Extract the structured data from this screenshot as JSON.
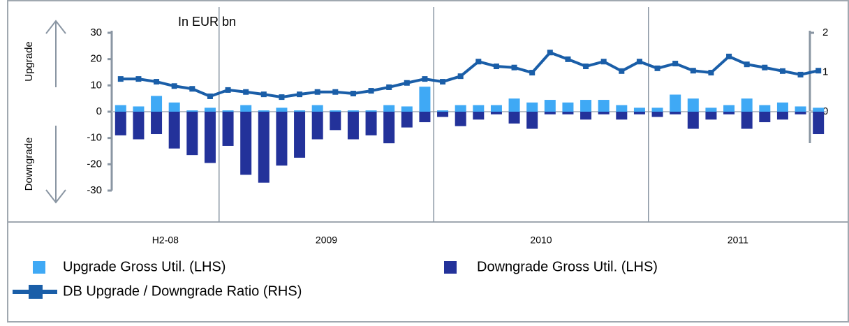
{
  "chart_data": {
    "type": "bar_line",
    "title": "In EUR bn",
    "y_up_label": "Upgrade",
    "y_down_label": "Downgrade",
    "categories": [
      null,
      null,
      null,
      null,
      null,
      null,
      null,
      null,
      null,
      null,
      null,
      null,
      null,
      null,
      null,
      null,
      null,
      null,
      null,
      null,
      null,
      null,
      null,
      null,
      null,
      null,
      null,
      null,
      null,
      null,
      null,
      null,
      null,
      null,
      null,
      null,
      null,
      null,
      null,
      null
    ],
    "groups": [
      "H2-08",
      "2009",
      "2010",
      "2011"
    ],
    "group_sizes": [
      6,
      12,
      12,
      10
    ],
    "series": [
      {
        "name": "Upgrade Gross Util. (LHS)",
        "type": "bar",
        "color": "#3fa9f5",
        "values": [
          2.5,
          2,
          6,
          3.5,
          0.5,
          1.5,
          0.5,
          2.5,
          0.5,
          1.5,
          0.5,
          2.5,
          0.5,
          0.5,
          0.5,
          2.5,
          2,
          9.5,
          0.5,
          2.5,
          2.5,
          2.5,
          5,
          3.5,
          4.5,
          3.5,
          4.5,
          4.5,
          2.5,
          1.5,
          1.5,
          6.5,
          5,
          1.5,
          2.5,
          5,
          2.5,
          3.5,
          2,
          1.5
        ]
      },
      {
        "name": "Downgrade Gross Util. (LHS)",
        "type": "bar",
        "color": "#23329a",
        "values": [
          -9,
          -10.5,
          -8.5,
          -14,
          -16.5,
          -19.5,
          -13,
          -24,
          -27,
          -20.5,
          -17.5,
          -10.5,
          -7,
          -10.5,
          -9,
          -12,
          -6,
          -4,
          -2,
          -5.5,
          -3,
          -1,
          -4.5,
          -6.5,
          -1,
          -1,
          -3,
          -1,
          -3,
          -1,
          -2,
          -1,
          -6.5,
          -3,
          -1,
          -6.5,
          -4,
          -3,
          -1,
          -8.5
        ]
      },
      {
        "name": "DB Upgrade / Downgrade Ratio (RHS)",
        "type": "line",
        "axis": "y2",
        "color": "#1a5ea8",
        "values": [
          0.83,
          0.83,
          0.76,
          0.65,
          0.58,
          0.39,
          0.55,
          0.5,
          0.44,
          0.37,
          0.44,
          0.5,
          0.5,
          0.46,
          0.53,
          0.62,
          0.73,
          0.83,
          0.76,
          0.9,
          1.27,
          1.15,
          1.12,
          0.99,
          1.5,
          1.33,
          1.15,
          1.27,
          1.03,
          1.27,
          1.1,
          1.22,
          1.04,
          0.99,
          1.4,
          1.2,
          1.12,
          1.03,
          0.94,
          1.04
        ]
      }
    ],
    "ylim": [
      -30,
      30
    ],
    "yticks": [
      -30,
      -20,
      -10,
      0,
      10,
      20,
      30
    ],
    "y2lim": [
      0,
      2
    ],
    "y2ticks": [
      0,
      1,
      2
    ]
  }
}
